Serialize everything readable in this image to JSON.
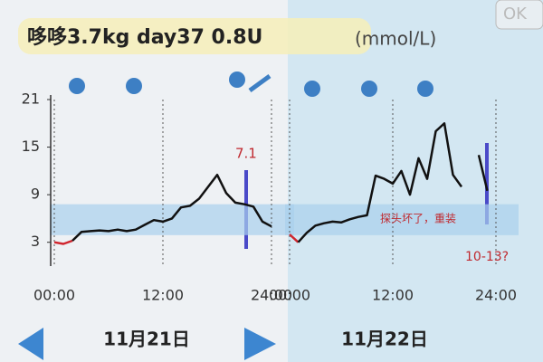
{
  "header": {
    "title": "哆哆3.7kg day37 0.8U",
    "unit": "(mmol/L)",
    "button": "OK"
  },
  "chart_data": [
    {
      "type": "line",
      "date": "11月21日",
      "x": [
        0,
        1,
        2,
        3,
        4,
        5,
        6,
        7,
        8,
        9,
        10,
        11,
        12,
        13,
        14,
        15,
        16,
        17,
        18,
        19,
        20,
        21,
        22,
        23,
        24
      ],
      "series": [
        {
          "color": "#d0262e",
          "values": [
            3.0,
            2.8,
            3.2,
            null,
            null,
            null,
            null,
            null,
            null,
            null,
            null,
            null,
            null,
            null,
            null,
            null,
            null,
            null,
            null,
            null,
            null,
            null,
            null,
            null,
            null
          ]
        },
        {
          "color": "#111111",
          "values": [
            null,
            null,
            3.2,
            4.3,
            4.4,
            4.5,
            4.4,
            4.6,
            4.4,
            4.6,
            5.2,
            5.8,
            5.6,
            6.0,
            7.4,
            7.6,
            8.5,
            10.0,
            11.5,
            9.2,
            8.0,
            7.8,
            7.5,
            5.6,
            5.0
          ]
        }
      ],
      "xlim": [
        0,
        24
      ],
      "xticks": [
        {
          "value": 0,
          "label": "00:00"
        },
        {
          "value": 12,
          "label": "12:00"
        },
        {
          "value": 24,
          "label": "24:00"
        }
      ],
      "ylim": [
        0,
        21
      ],
      "yticks": [
        3,
        9,
        15,
        21
      ],
      "target_range": [
        3.9,
        7.8
      ],
      "annotations": [
        "7.1"
      ]
    },
    {
      "type": "line",
      "date": "11月22日",
      "x": [
        0,
        1,
        2,
        3,
        4,
        5,
        6,
        7,
        8,
        9,
        10,
        11,
        12,
        13,
        14,
        15,
        16,
        17,
        18,
        19,
        20,
        21,
        22,
        23,
        24
      ],
      "series": [
        {
          "color": "#d0262e",
          "values": [
            4.0,
            3.0,
            null,
            null,
            null,
            null,
            null,
            null,
            null,
            null,
            null,
            null,
            null,
            null,
            null,
            null,
            null,
            null,
            null,
            null,
            null,
            null,
            null,
            null,
            null
          ]
        },
        {
          "color": "#111111",
          "values": [
            null,
            3.0,
            4.2,
            5.1,
            5.4,
            5.6,
            5.5,
            5.9,
            6.2,
            6.4,
            11.4,
            11.0,
            10.4,
            12.0,
            9.0,
            13.6,
            11.0,
            17.0,
            18.0,
            11.5,
            10.0,
            null,
            14.0,
            9.5,
            null
          ]
        }
      ],
      "xlim": [
        0,
        24
      ],
      "xticks": [
        {
          "value": 0,
          "label": "00:00"
        },
        {
          "value": 12,
          "label": "12:00"
        },
        {
          "value": 24,
          "label": "24:00"
        }
      ],
      "ylim": [
        0,
        21
      ],
      "target_range": [
        3.9,
        7.8
      ],
      "annotations": [
        "探头坏了，重装",
        "10-13?"
      ]
    }
  ]
}
